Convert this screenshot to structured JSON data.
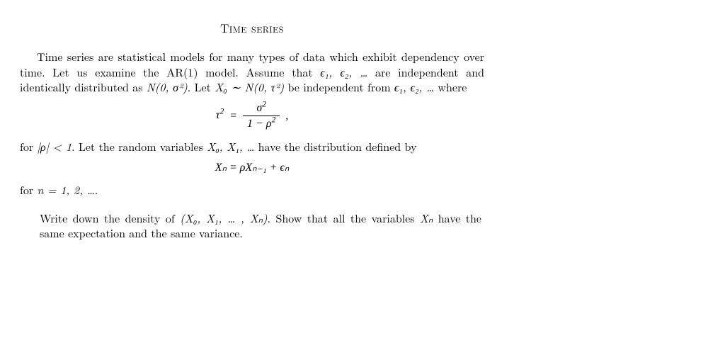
{
  "title": "Time series",
  "para1_a": "Time series are statistical models for many types of data which exhibit dependency over time.  Let us examine the AR(1) model.  Assume that ",
  "para1_b": " are independent and identically distributed as ",
  "para1_c": ".  Let ",
  "para1_d": " be independent from ",
  "para1_e": " where",
  "eq1_lhs": "τ",
  "eq1_num": "σ",
  "eq1_den_a": "1 − ρ",
  "para2_a": "for ",
  "para2_b": ". Let the random variables ",
  "para2_c": " have the distribution defined by",
  "eq2": "Xₙ = ρXₙ₋₁ + ϵₙ",
  "para3_a": "for ",
  "para3_b": ".",
  "exercise_a": "Write down the density of ",
  "exercise_b": ". Show that all the variables ",
  "exercise_c": " have the same expectation and the same variance.",
  "sym": {
    "eps12": "ϵ₁, ϵ₂, …",
    "Nsigma": "N(0, σ²)",
    "X0Ntau": "X₀ ∼ N(0, τ²)",
    "rho_lt1": "|ρ| < 1",
    "X0X1": "X₀, X₁, …",
    "n12": "n = 1, 2, …",
    "jointvec": "(X₀, X₁, … , Xₙ)",
    "Xn": "Xₙ"
  },
  "colors": {
    "text": "#000000",
    "background": "#ffffff"
  },
  "typography": {
    "body_fontsize_pt": 12,
    "title_fontsize_pt": 12,
    "font_family": "Computer Modern / Latin Modern (serif)"
  }
}
